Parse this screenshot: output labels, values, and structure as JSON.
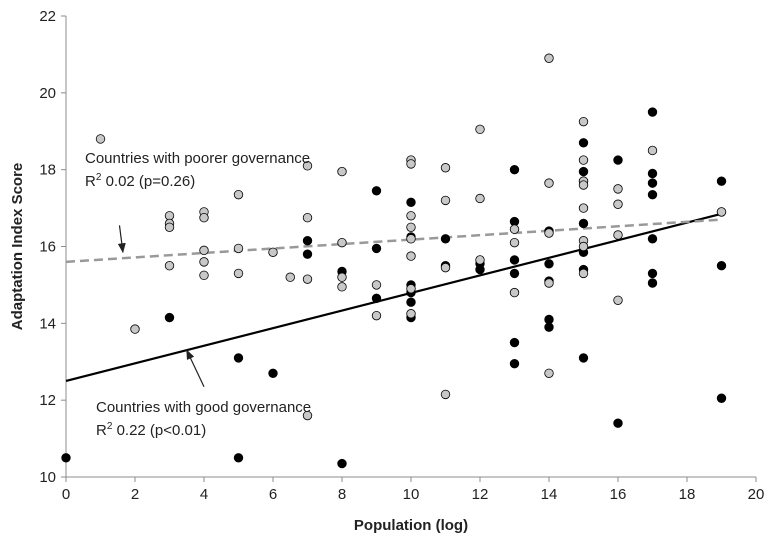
{
  "chart_data": {
    "type": "scatter",
    "xlabel": "Population (log)",
    "ylabel": "Adaptation Index Score",
    "xlim": [
      0,
      20
    ],
    "ylim": [
      10,
      22
    ],
    "xticks": [
      "0",
      "2",
      "4",
      "6",
      "8",
      "10",
      "12",
      "14",
      "16",
      "18",
      "20"
    ],
    "yticks": [
      "10",
      "12",
      "14",
      "16",
      "18",
      "20",
      "22"
    ],
    "grid": false,
    "series": [
      {
        "color": "#000000",
        "points": [
          [
            0,
            10.5
          ],
          [
            3,
            14.15
          ],
          [
            5,
            13.1
          ],
          [
            5,
            10.5
          ],
          [
            6,
            12.7
          ],
          [
            7,
            16.15
          ],
          [
            7,
            15.8
          ],
          [
            8,
            15.35
          ],
          [
            8,
            10.35
          ],
          [
            9,
            17.45
          ],
          [
            9,
            15.95
          ],
          [
            9,
            14.65
          ],
          [
            10,
            17.15
          ],
          [
            10,
            16.25
          ],
          [
            10,
            15.0
          ],
          [
            10,
            14.8
          ],
          [
            10,
            14.55
          ],
          [
            10,
            14.15
          ],
          [
            11,
            16.2
          ],
          [
            11,
            15.5
          ],
          [
            12,
            15.55
          ],
          [
            12,
            15.4
          ],
          [
            13,
            18.0
          ],
          [
            13,
            16.65
          ],
          [
            13,
            15.65
          ],
          [
            13,
            15.3
          ],
          [
            13,
            13.5
          ],
          [
            13,
            12.95
          ],
          [
            14,
            16.4
          ],
          [
            14,
            15.55
          ],
          [
            14,
            15.1
          ],
          [
            14,
            14.1
          ],
          [
            14,
            13.9
          ],
          [
            15,
            18.7
          ],
          [
            15,
            17.95
          ],
          [
            15,
            17.7
          ],
          [
            15,
            16.6
          ],
          [
            15,
            15.85
          ],
          [
            15,
            15.4
          ],
          [
            15,
            13.1
          ],
          [
            16,
            18.25
          ],
          [
            16,
            11.4
          ],
          [
            17,
            19.5
          ],
          [
            17,
            17.9
          ],
          [
            17,
            17.65
          ],
          [
            17,
            17.35
          ],
          [
            17,
            16.2
          ],
          [
            17,
            15.3
          ],
          [
            17,
            15.05
          ],
          [
            19,
            17.7
          ],
          [
            19,
            16.9
          ],
          [
            19,
            15.5
          ],
          [
            19,
            12.05
          ]
        ]
      },
      {
        "color": "#c8c8c8",
        "points": [
          [
            1,
            18.8
          ],
          [
            2,
            13.85
          ],
          [
            3,
            16.8
          ],
          [
            3,
            16.6
          ],
          [
            3,
            16.5
          ],
          [
            3,
            15.5
          ],
          [
            4,
            16.9
          ],
          [
            4,
            16.75
          ],
          [
            4,
            15.9
          ],
          [
            4,
            15.6
          ],
          [
            4,
            15.25
          ],
          [
            5,
            17.35
          ],
          [
            5,
            15.95
          ],
          [
            5,
            15.3
          ],
          [
            6,
            15.85
          ],
          [
            6.5,
            15.2
          ],
          [
            7,
            18.1
          ],
          [
            7,
            16.75
          ],
          [
            7,
            15.15
          ],
          [
            7,
            11.6
          ],
          [
            8,
            17.95
          ],
          [
            8,
            16.1
          ],
          [
            8,
            15.2
          ],
          [
            8,
            14.95
          ],
          [
            9,
            15.0
          ],
          [
            9,
            14.2
          ],
          [
            10,
            18.25
          ],
          [
            10,
            18.15
          ],
          [
            10,
            16.8
          ],
          [
            10,
            16.5
          ],
          [
            10,
            16.2
          ],
          [
            10,
            15.75
          ],
          [
            10,
            14.9
          ],
          [
            10,
            14.25
          ],
          [
            11,
            18.05
          ],
          [
            11,
            17.2
          ],
          [
            11,
            15.45
          ],
          [
            11,
            12.15
          ],
          [
            12,
            19.05
          ],
          [
            12,
            17.25
          ],
          [
            12,
            15.65
          ],
          [
            13,
            16.45
          ],
          [
            13,
            16.1
          ],
          [
            13,
            14.8
          ],
          [
            14,
            20.9
          ],
          [
            14,
            17.65
          ],
          [
            14,
            16.35
          ],
          [
            14,
            15.05
          ],
          [
            14,
            12.7
          ],
          [
            15,
            19.25
          ],
          [
            15,
            18.25
          ],
          [
            15,
            17.7
          ],
          [
            15,
            17.6
          ],
          [
            15,
            17.0
          ],
          [
            15,
            16.15
          ],
          [
            15,
            16.0
          ],
          [
            15,
            15.3
          ],
          [
            16,
            17.5
          ],
          [
            16,
            17.1
          ],
          [
            16,
            16.3
          ],
          [
            16,
            14.6
          ],
          [
            17,
            18.5
          ],
          [
            19,
            16.9
          ]
        ]
      }
    ],
    "trendlines": [
      {
        "x": [
          0,
          19
        ],
        "y": [
          12.5,
          16.85
        ],
        "color": "#000000",
        "dash": "solid"
      },
      {
        "x": [
          0,
          19
        ],
        "y": [
          15.6,
          16.7
        ],
        "color": "#999999",
        "dash": "dashed"
      }
    ],
    "annotations": [
      {
        "lines": [
          {
            "text": "Countries with poorer governance"
          },
          {
            "pre": "R",
            "sup": "2",
            "post": " 0.02 (p=0.26)"
          }
        ],
        "arrow_from": [
          1.55,
          16.55
        ],
        "arrow_to": [
          1.65,
          15.85
        ]
      },
      {
        "lines": [
          {
            "text": "Countries with good governance"
          },
          {
            "pre": "R",
            "sup": "2",
            "post": " 0.22 (p<0.01)"
          }
        ],
        "arrow_from": [
          4.0,
          12.35
        ],
        "arrow_to": [
          3.5,
          13.3
        ]
      }
    ]
  }
}
